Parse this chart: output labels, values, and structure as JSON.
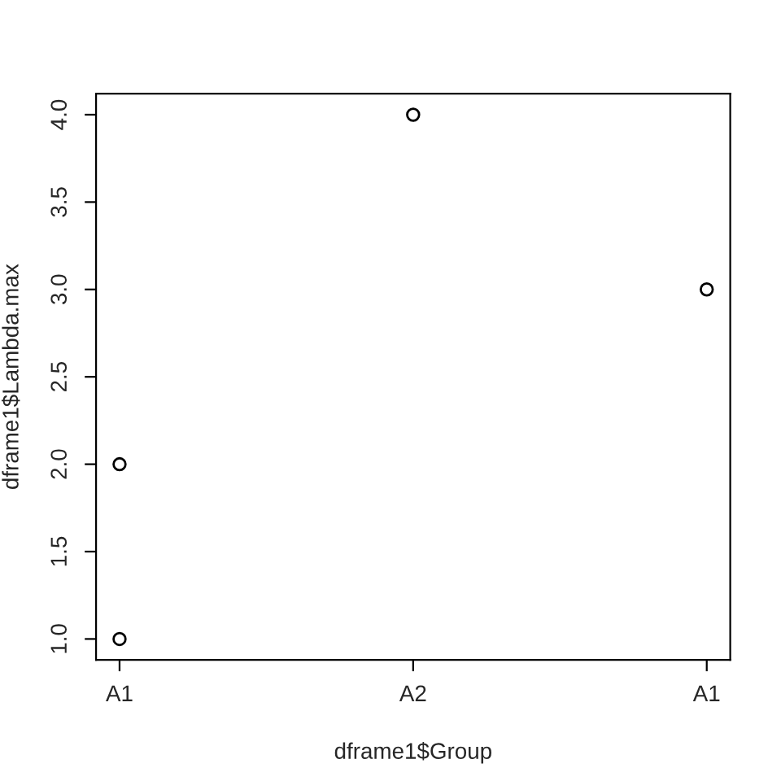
{
  "chart_data": {
    "type": "scatter",
    "xlabel": "dframe1$Group",
    "ylabel": "dframe1$Lambda.max",
    "categories": [
      "A1",
      "A2",
      "A1"
    ],
    "series": [
      {
        "color": "#000000",
        "values": [
          2,
          4,
          3
        ]
      },
      {
        "color": "#000000",
        "values": [
          1,
          null,
          null
        ]
      }
    ],
    "marker": "circle",
    "ylim": [
      0.88,
      4.12
    ],
    "yticks": [
      {
        "value": 1,
        "label": "1.0"
      },
      {
        "value": 1.5,
        "label": "1.5"
      },
      {
        "value": 2,
        "label": "2.0"
      },
      {
        "value": 2.5,
        "label": "2.5"
      },
      {
        "value": 3,
        "label": "3.0"
      },
      {
        "value": 3.5,
        "label": "3.5"
      },
      {
        "value": 4,
        "label": "4.0"
      }
    ],
    "grid": false,
    "legend": false
  }
}
